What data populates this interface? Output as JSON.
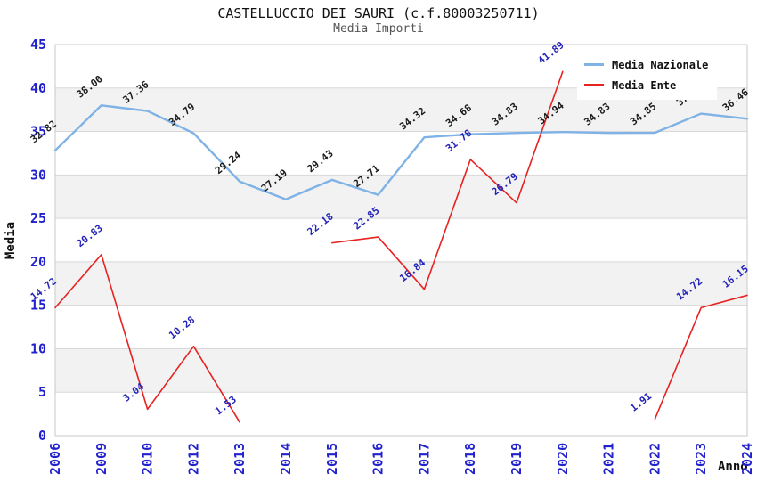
{
  "header": {
    "title": "CASTELLUCCIO DEI SAURI (c.f.80003250711)",
    "subtitle": "Media Importi"
  },
  "axes": {
    "y_label": "Media",
    "x_label": "Anno"
  },
  "chart_data": {
    "type": "line",
    "title": "CASTELLUCCIO DEI SAURI (c.f.80003250711)",
    "subtitle": "Media Importi",
    "xlabel": "Anno",
    "ylabel": "Media",
    "ylim": [
      0,
      45
    ],
    "ytick_step": 5,
    "y_ticks": [
      0,
      5,
      10,
      15,
      20,
      25,
      30,
      35,
      40,
      45
    ],
    "grid": true,
    "legend_position": "top-right",
    "categories": [
      "2006",
      "2009",
      "2010",
      "2012",
      "2013",
      "2014",
      "2015",
      "2016",
      "2017",
      "2018",
      "2019",
      "2020",
      "2021",
      "2022",
      "2023",
      "2024"
    ],
    "series": [
      {
        "name": "Media Nazionale",
        "color": "#7FB2E5",
        "label_color": "#1A1A1A",
        "values": [
          32.82,
          38.0,
          37.36,
          34.79,
          29.24,
          27.19,
          29.43,
          27.71,
          34.32,
          34.68,
          34.83,
          34.94,
          34.83,
          34.85,
          37.05,
          36.46
        ],
        "labels": [
          "32.82",
          "38.00",
          "37.36",
          "34.79",
          "29.24",
          "27.19",
          "29.43",
          "27.71",
          "34.32",
          "34.68",
          "34.83",
          "34.94",
          "34.83",
          "34.85",
          "37.05",
          "36.46"
        ]
      },
      {
        "name": "Media Ente",
        "color": "#E62222",
        "label_color": "#2424B8",
        "values": [
          14.72,
          20.83,
          3.04,
          10.28,
          1.53,
          null,
          22.18,
          22.85,
          16.84,
          31.78,
          26.79,
          41.89,
          null,
          1.91,
          14.72,
          16.15
        ],
        "labels": [
          "14.72",
          "20.83",
          "3.04",
          "10.28",
          "1.53",
          null,
          "22.18",
          "22.85",
          "16.84",
          "31.78",
          "26.79",
          "41.89",
          null,
          "1.91",
          "14.72",
          "16.15"
        ]
      }
    ],
    "colors": {
      "tick_label": "#2222CC",
      "band": "#F2F2F2",
      "grid": "#D8D8D8",
      "border": "#C9C9C9"
    }
  }
}
